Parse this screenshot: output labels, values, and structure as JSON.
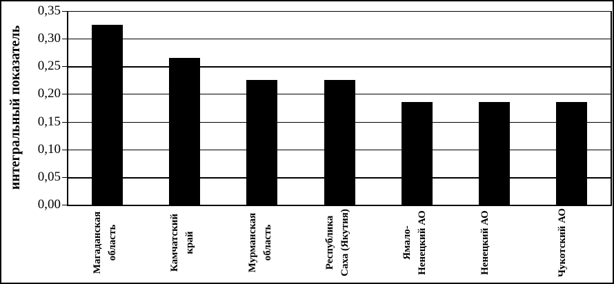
{
  "figure": {
    "background": "#ffffff",
    "border_color": "#000000"
  },
  "chart_data": {
    "type": "bar",
    "title": "",
    "xlabel": "",
    "ylabel": "интегральный показатель",
    "categories": [
      "Магаданская область",
      "Камчатский край",
      "Мурманская область",
      "Республика Саха (Якутия)",
      "Ямало-Ненецкий АО",
      "Ненецкий АО",
      "Чукотский АО"
    ],
    "category_lines": [
      [
        "Магаданская",
        "область"
      ],
      [
        "Камчатский",
        "край"
      ],
      [
        "Мурманская",
        "область"
      ],
      [
        "Республика",
        "Саха (Якутия)"
      ],
      [
        "Ямало-",
        "Ненецкий АО"
      ],
      [
        "Ненецкий АО"
      ],
      [
        "Чукотский АО"
      ]
    ],
    "values": [
      0.325,
      0.265,
      0.225,
      0.225,
      0.185,
      0.185,
      0.185
    ],
    "ylim": [
      0,
      0.35
    ],
    "ytick_step": 0.05,
    "ytick_labels": [
      "0,00",
      "0,05",
      "0,10",
      "0,15",
      "0,20",
      "0,25",
      "0,30",
      "0,35"
    ],
    "grid": true,
    "thick_gridlines": [
      0.05,
      0.25
    ],
    "legend_position": "none",
    "bar_color": "#000000",
    "grid_color": "#000000",
    "text_color": "#000000"
  }
}
